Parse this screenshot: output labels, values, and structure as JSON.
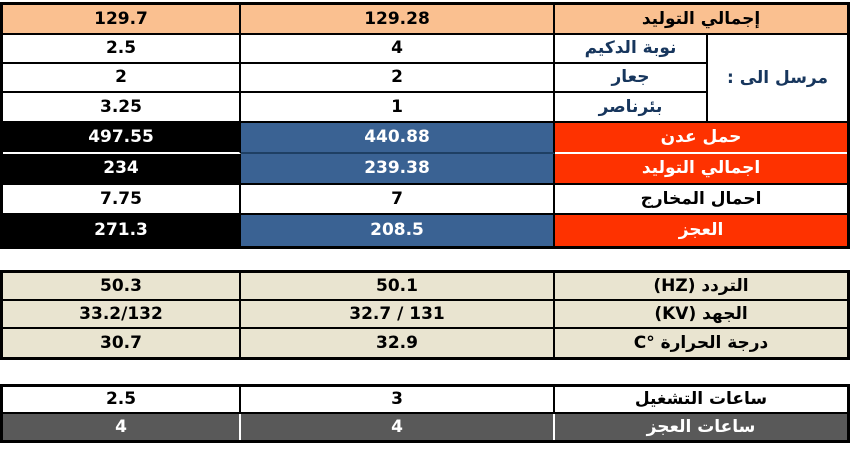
{
  "report": {
    "colors": {
      "header_fill": "#FAC090",
      "alert_fill": "#FE3200",
      "value_dark_fill": "#000000",
      "value_blue_fill": "#3A6293",
      "info_fill": "#E9E4D0",
      "hours_deficit_fill": "#595959",
      "label_text": "#17365D"
    },
    "generation_table": {
      "sent_to_label": "مرسل الى :",
      "rows": [
        {
          "v1": "129.7",
          "v2": "129.28",
          "label": "إجمالي التوليد"
        },
        {
          "v1": "2.5",
          "v2": "4",
          "label": "نوبة الدكيم"
        },
        {
          "v1": "2",
          "v2": "2",
          "label": "جعار"
        },
        {
          "v1": "3.25",
          "v2": "1",
          "label": "بئرناصر"
        },
        {
          "v1": "497.55",
          "v2": "440.88",
          "label": "حمل عدن"
        },
        {
          "v1": "234",
          "v2": "239.38",
          "label": "اجمالي التوليد"
        },
        {
          "v1": "7.75",
          "v2": "7",
          "label": "احمال المخارج"
        },
        {
          "v1": "271.3",
          "v2": "208.5",
          "label": "العجز"
        }
      ]
    },
    "measurements_table": {
      "rows": [
        {
          "v1": "50.3",
          "v2": "50.1",
          "label": "التردد (HZ)"
        },
        {
          "v1": "33.2/132",
          "v2": "32.7 / 131",
          "label": "الجهد (KV)"
        },
        {
          "v1": "30.7",
          "v2": "32.9",
          "label": "درجة الحرارة °C"
        }
      ]
    },
    "hours_table": {
      "rows": [
        {
          "v1": "2.5",
          "v2": "3",
          "label": "ساعات التشغيل"
        },
        {
          "v1": "4",
          "v2": "4",
          "label": "ساعات العجز"
        }
      ]
    }
  }
}
